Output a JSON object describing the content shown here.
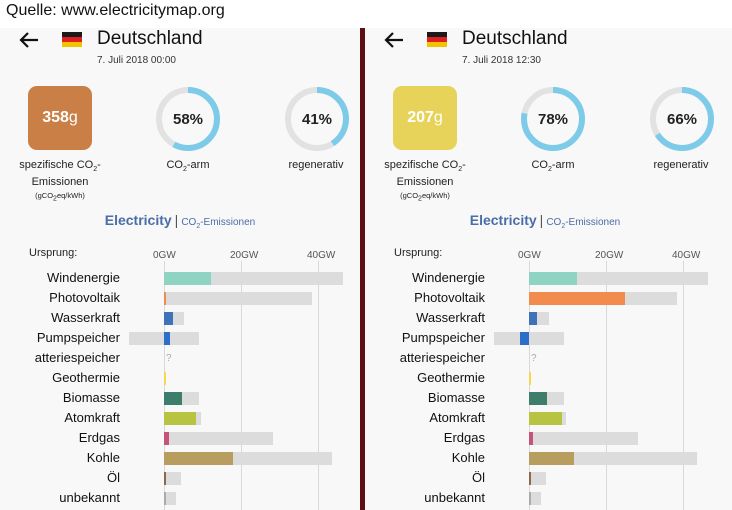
{
  "source_caption": "Quelle: www.electricitymap.org",
  "panels": [
    {
      "id": "left",
      "country": "Deutschland",
      "datetime": "7. Juli 2018 00:00",
      "co2_value": "358",
      "co2_unit": "g",
      "co2_color": "#c97f45",
      "low_carbon_pct": "58%",
      "low_carbon_fraction": 0.58,
      "renewable_pct": "41%",
      "renewable_fraction": 0.41,
      "ticks": [
        "0GW",
        "20GW",
        "40GW"
      ],
      "rows": [
        {
          "label": "Windenergie",
          "value_gw": 12.3,
          "capacity_gw": 46.5,
          "color": "#8fd3c3"
        },
        {
          "label": "Photovoltaik",
          "value_gw": 0,
          "capacity_gw": 38.5,
          "color": "#f28c4e"
        },
        {
          "label": "Wasserkraft",
          "value_gw": 2.4,
          "capacity_gw": 5.1,
          "color": "#3f72b8"
        },
        {
          "label": "Pumpspeicher",
          "value_gw": 1.5,
          "capacity_gw": 9.0,
          "import_capacity_gw": -9.0,
          "color": "#2e6ecb"
        },
        {
          "label": "atteriespeicher",
          "value_gw": null,
          "capacity_gw": null,
          "unknown_mark": "?",
          "color": "#cccccc"
        },
        {
          "label": "Geothermie",
          "value_gw": 0.04,
          "capacity_gw": 0.04,
          "color": "#f5d94b"
        },
        {
          "label": "Biomasse",
          "value_gw": 4.8,
          "capacity_gw": 9.2,
          "color": "#3d7d6c"
        },
        {
          "label": "Atomkraft",
          "value_gw": 8.4,
          "capacity_gw": 9.5,
          "color": "#b9c342"
        },
        {
          "label": "Erdgas",
          "value_gw": 1.2,
          "capacity_gw": 28.3,
          "color": "#c5537a"
        },
        {
          "label": "Kohle",
          "value_gw": 17.8,
          "capacity_gw": 43.7,
          "color": "#b89e5e"
        },
        {
          "label": "Öl",
          "value_gw": 0.2,
          "capacity_gw": 4.3,
          "color": "#8a6a4a"
        },
        {
          "label": "unbekannt",
          "value_gw": 0,
          "capacity_gw": 3.0,
          "color": "#aaaaaa"
        }
      ]
    },
    {
      "id": "right",
      "country": "Deutschland",
      "datetime": "7. Juli 2018 12:30",
      "co2_value": "207",
      "co2_unit": "g",
      "co2_color": "#e8d35a",
      "low_carbon_pct": "78%",
      "low_carbon_fraction": 0.78,
      "renewable_pct": "66%",
      "renewable_fraction": 0.66,
      "ticks": [
        "0GW",
        "20GW",
        "40GW"
      ],
      "rows": [
        {
          "label": "Windenergie",
          "value_gw": 12.5,
          "capacity_gw": 46.5,
          "color": "#8fd3c3"
        },
        {
          "label": "Photovoltaik",
          "value_gw": 25.0,
          "capacity_gw": 38.5,
          "color": "#f28c4e"
        },
        {
          "label": "Wasserkraft",
          "value_gw": 2.1,
          "capacity_gw": 5.1,
          "color": "#3f72b8"
        },
        {
          "label": "Pumpspeicher",
          "value_gw": -2.4,
          "capacity_gw": 9.0,
          "import_capacity_gw": -9.0,
          "color": "#2e6ecb"
        },
        {
          "label": "atteriespeicher",
          "value_gw": null,
          "capacity_gw": null,
          "unknown_mark": "?",
          "color": "#cccccc"
        },
        {
          "label": "Geothermie",
          "value_gw": 0.04,
          "capacity_gw": 0.04,
          "color": "#f5d94b"
        },
        {
          "label": "Biomasse",
          "value_gw": 4.8,
          "capacity_gw": 9.2,
          "color": "#3d7d6c"
        },
        {
          "label": "Atomkraft",
          "value_gw": 8.6,
          "capacity_gw": 9.5,
          "color": "#b9c342"
        },
        {
          "label": "Erdgas",
          "value_gw": 1.0,
          "capacity_gw": 28.3,
          "color": "#c5537a"
        },
        {
          "label": "Kohle",
          "value_gw": 11.8,
          "capacity_gw": 43.7,
          "color": "#b89e5e"
        },
        {
          "label": "Öl",
          "value_gw": 0.2,
          "capacity_gw": 4.3,
          "color": "#8a6a4a"
        },
        {
          "label": "unbekannt",
          "value_gw": 0,
          "capacity_gw": 3.0,
          "color": "#aaaaaa"
        }
      ]
    }
  ],
  "labels": {
    "co2_specific_line1": "spezifische CO",
    "co2_specific_sub": "2",
    "co2_specific_line1_end": "-",
    "co2_specific_line2": "Emissionen",
    "co2_specific_unit": "(gCO",
    "co2_specific_unit_sub": "2",
    "co2_specific_unit_end": "eq/kWh)",
    "low_carbon_prefix": "CO",
    "low_carbon_sub": "2",
    "low_carbon_suffix": "-arm",
    "renewable": "regenerativ",
    "tab_electricity": "Electricity",
    "tab_separator": "|",
    "tab_emissions_prefix": "CO",
    "tab_emissions_sub": "2",
    "tab_emissions_suffix": "-Emissionen",
    "origin": "Ursprung:"
  },
  "colors": {
    "gauge_track": "#e2e2e2",
    "gauge_fill": "#7ecbe9",
    "capacity_bar": "#dcdcdc",
    "panel_background": "#f8f8f8",
    "divider": "#5c1015"
  }
}
